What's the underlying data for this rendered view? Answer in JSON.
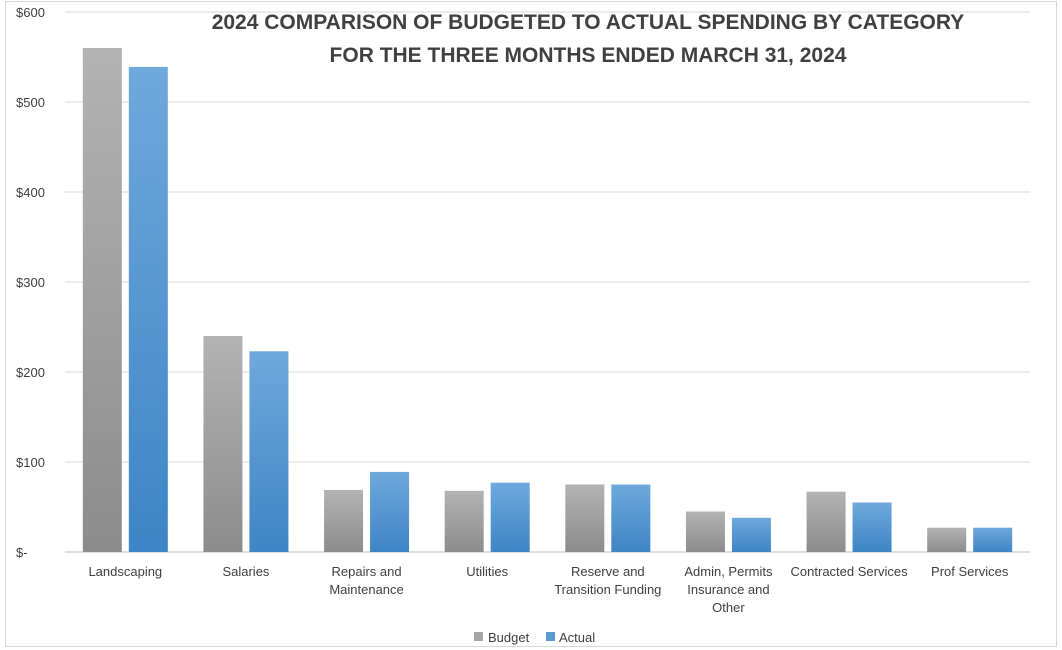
{
  "chart_data": {
    "type": "bar",
    "title_lines": [
      "2024 COMPARISON OF BUDGETED TO ACTUAL SPENDING BY CATEGORY",
      "FOR THE THREE MONTHS ENDED MARCH 31, 2024"
    ],
    "categories": [
      [
        "Landscaping"
      ],
      [
        "Salaries"
      ],
      [
        "Repairs and",
        "Maintenance"
      ],
      [
        "Utilities"
      ],
      [
        "Reserve and",
        "Transition Funding"
      ],
      [
        "Admin, Permits",
        "Insurance and",
        "Other"
      ],
      [
        "Contracted Services"
      ],
      [
        "Prof Services"
      ]
    ],
    "series": [
      {
        "name": "Budget",
        "color": "#a6a6a6",
        "values": [
          560,
          240,
          69,
          68,
          75,
          45,
          67,
          27
        ]
      },
      {
        "name": "Actual",
        "color": "#5b9bd5",
        "values": [
          539,
          223,
          89,
          77,
          75,
          38,
          55,
          27
        ]
      }
    ],
    "y_ticks": [
      {
        "value": 0,
        "label": "$-"
      },
      {
        "value": 100,
        "label": "$100"
      },
      {
        "value": 200,
        "label": "$200"
      },
      {
        "value": 300,
        "label": "$300"
      },
      {
        "value": 400,
        "label": "$400"
      },
      {
        "value": 500,
        "label": "$500"
      },
      {
        "value": 600,
        "label": "$600"
      }
    ],
    "ylim": [
      0,
      600
    ],
    "grid": true,
    "legend_position": "bottom",
    "xlabel": "",
    "ylabel": ""
  }
}
